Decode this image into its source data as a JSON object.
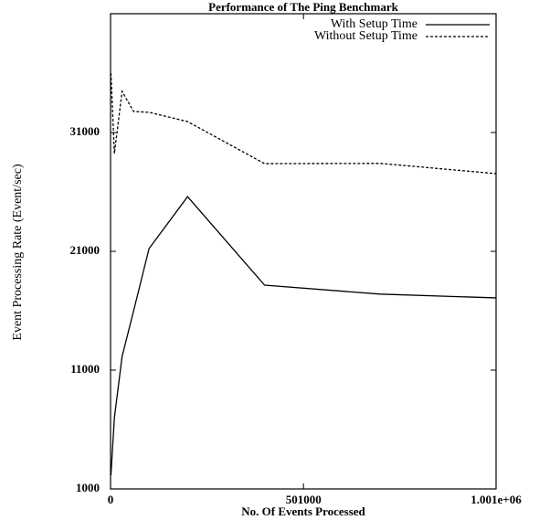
{
  "chart_data": {
    "type": "line",
    "title": "Performance of The Ping Benchmark",
    "xlabel": "No. Of Events Processed",
    "ylabel": "Event Processing Rate (Event/sec)",
    "x": [
      1000,
      10000,
      30000,
      60000,
      100000,
      200000,
      400000,
      700000,
      1001000
    ],
    "series": [
      {
        "name": "With Setup Time",
        "color": "#000000",
        "dash": false,
        "values": [
          2150,
          7000,
          12150,
          16000,
          21230,
          25600,
          18150,
          17400,
          17080
        ]
      },
      {
        "name": "Without Setup Time",
        "color": "#000000",
        "dash": true,
        "values": [
          36000,
          29230,
          34460,
          32770,
          32700,
          31920,
          28380,
          28400,
          27540
        ]
      }
    ],
    "xlim": [
      0,
      1001000
    ],
    "xticks": [
      0,
      501000,
      {
        "value": 1001000,
        "label": "1.001e+06"
      }
    ],
    "ylim": [
      1000,
      41000
    ],
    "yticks": [
      1000,
      11000,
      21000,
      31000
    ],
    "legend": "upper right"
  }
}
